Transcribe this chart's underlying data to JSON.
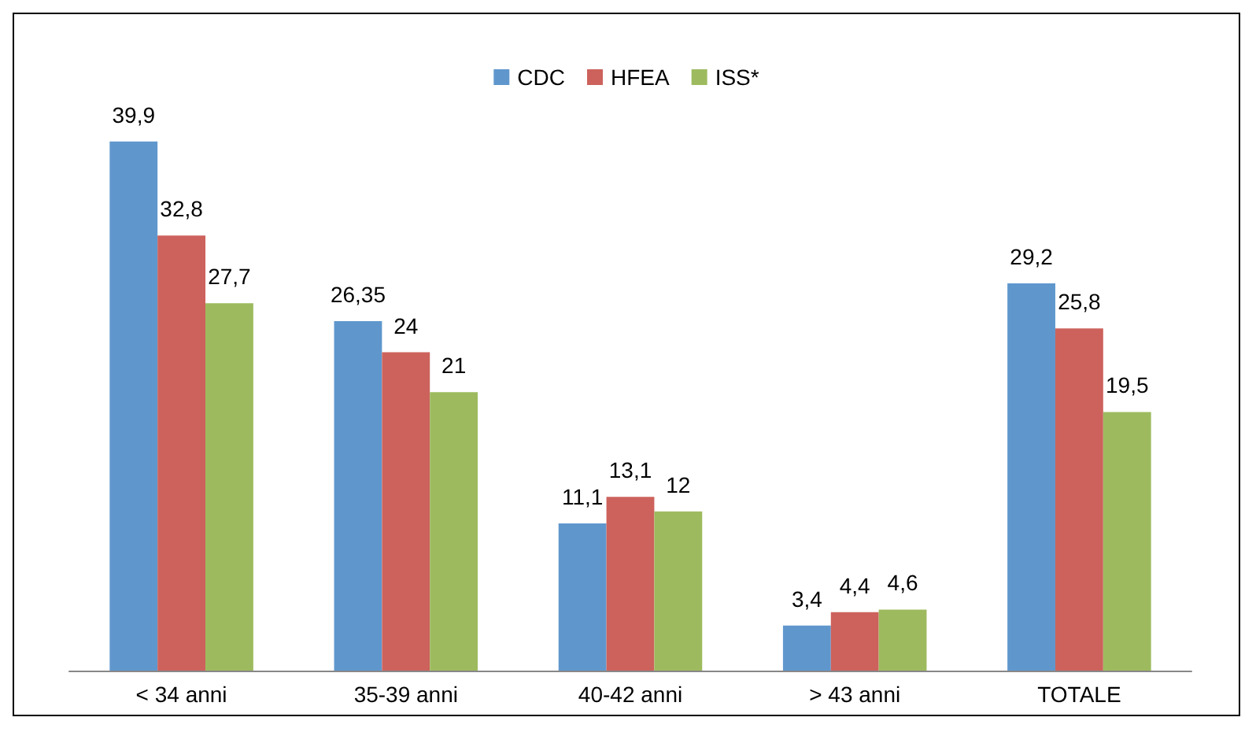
{
  "chart_data": {
    "type": "bar",
    "categories": [
      "< 34 anni",
      "35-39 anni",
      "40-42 anni",
      "> 43 anni",
      "TOTALE"
    ],
    "series": [
      {
        "name": "CDC",
        "color": "#5f97cd",
        "values": [
          39.9,
          26.35,
          11.1,
          3.4,
          29.2
        ],
        "value_labels": [
          "39,9",
          "26,35",
          "11,1",
          "3,4",
          "29,2"
        ]
      },
      {
        "name": "HFEA",
        "color": "#cd625c",
        "values": [
          32.8,
          24,
          13.1,
          4.4,
          25.8
        ],
        "value_labels": [
          "32,8",
          "24",
          "13,1",
          "4,4",
          "25,8"
        ]
      },
      {
        "name": "ISS*",
        "color": "#9dbb5e",
        "values": [
          27.7,
          21,
          12,
          4.6,
          19.5
        ],
        "value_labels": [
          "27,7",
          "21",
          "12",
          "4,6",
          "19,5"
        ]
      }
    ],
    "legend": "top"
  }
}
